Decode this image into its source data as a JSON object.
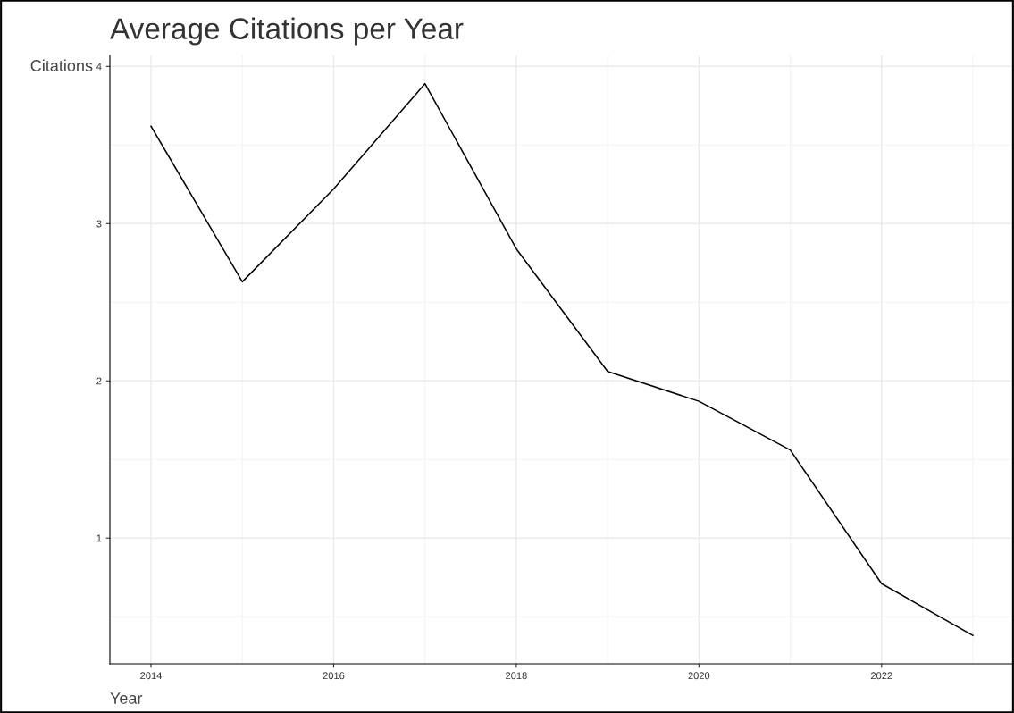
{
  "chart_data": {
    "type": "line",
    "title": "Average Citations per Year",
    "xlabel": "Year",
    "ylabel": "Citations",
    "x": [
      2014,
      2015,
      2016,
      2017,
      2018,
      2019,
      2020,
      2021,
      2022,
      2023
    ],
    "series": [
      {
        "color": "#000000",
        "values": [
          3.62,
          2.63,
          3.22,
          3.89,
          2.84,
          2.06,
          1.87,
          1.56,
          0.71,
          0.38
        ]
      }
    ],
    "xlim": [
      2013.55,
      2023.45
    ],
    "xticks": [
      2014,
      2016,
      2018,
      2020,
      2022
    ],
    "ylim": [
      0.2,
      4.07
    ],
    "yticks": [
      1,
      2,
      3,
      4
    ],
    "grid": true,
    "marker": "none",
    "line_style": "solid"
  }
}
